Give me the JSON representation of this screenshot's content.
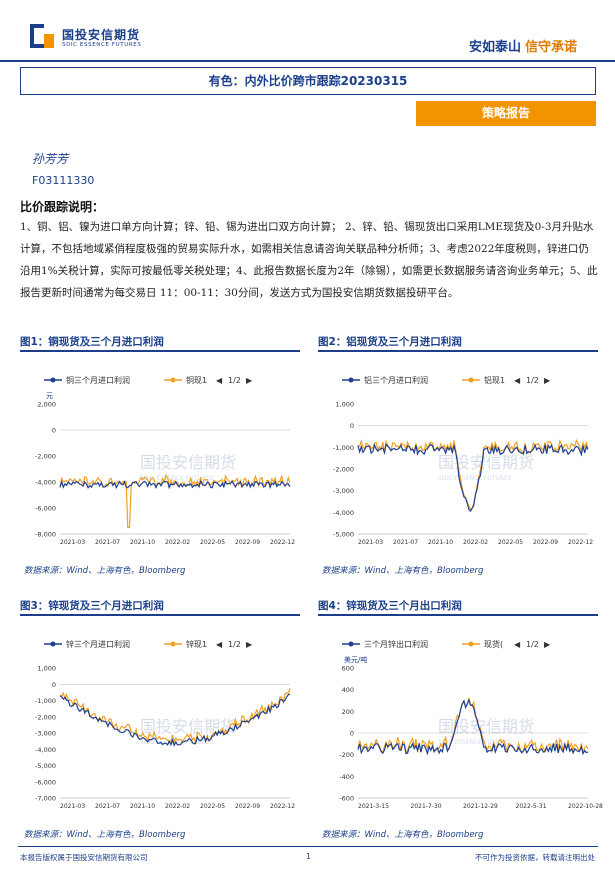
{
  "header": {
    "logo_cn": "国投安信期货",
    "logo_en": "SDIC ESSENCE FUTURES",
    "slogan_main": "安如泰山",
    "slogan_accent": "信守承诺"
  },
  "report": {
    "title": "有色：内外比价跨市跟踪20230315",
    "tag": "策略报告",
    "author": "孙芳芳",
    "license": "F03111330",
    "section_title": "比价跟踪说明：",
    "description": "1、铜、铝、镍为进口单方向计算；锌、铅、锡为进出口双方向计算； 2、锌、铅、锡现货出口采用LME现货及0-3月升贴水计算，不包括地域紧俏程度极强的贸易实际升水，如需相关信息请咨询关联品种分析师；3、考虑2022年度税则，锌进口仍沿用1%关税计算，实际可按最低零关税处理；4、此报告数据长度为2年（除锡），如需更长数据服务请咨询业务单元；5、此报告更新时间通常为每交易日 11：00-11：30分间，发送方式为国投安信期货数据投研平台。"
  },
  "colors": {
    "blue": "#1b3f8b",
    "orange": "#f29400",
    "series_blue": "#1f3f8f",
    "series_orange": "#f0a020"
  },
  "charts": [
    {
      "fig_label": "图1：铜现货及三个月进口利润",
      "legend": [
        "铜三个月进口利润",
        "铜现1"
      ],
      "pager": "1/2",
      "unit": "元",
      "source": "数据来源：Wind、上海有色，Bloomberg",
      "yticks": [
        "2,000",
        "0",
        "-2,000",
        "-4,000",
        "-6,000",
        "-8,000"
      ],
      "xticks": [
        "2021-03",
        "2021-07",
        "2021-10",
        "2022-02",
        "2022-05",
        "2022-09",
        "2022-12"
      ]
    },
    {
      "fig_label": "图2：铝现货及三个月进口利润",
      "legend": [
        "铝三个月进口利润",
        "铝现1"
      ],
      "pager": "1/2",
      "unit": "",
      "source": "数据来源：Wind、上海有色，Bloomberg",
      "yticks": [
        "1,000",
        "0",
        "-1,000",
        "-2,000",
        "-3,000",
        "-4,000",
        "-5,000"
      ],
      "xticks": [
        "2021-03",
        "2021-07",
        "2021-10",
        "2022-02",
        "2022-05",
        "2022-09",
        "2022-12"
      ]
    },
    {
      "fig_label": "图3：锌现货及三个月进口利润",
      "legend": [
        "锌三个月进口利润",
        "锌现1"
      ],
      "pager": "1/2",
      "unit": "",
      "source": "数据来源：Wind、上海有色，Bloomberg",
      "yticks": [
        "1,000",
        "0",
        "-1,000",
        "-2,000",
        "-3,000",
        "-4,000",
        "-5,000",
        "-6,000",
        "-7,000"
      ],
      "xticks": [
        "2021-03",
        "2021-07",
        "2021-10",
        "2022-02",
        "2022-05",
        "2022-09",
        "2022-12"
      ]
    },
    {
      "fig_label": "图4：锌现货及三个月出口利润",
      "legend": [
        "三个月锌出口利润",
        "现货("
      ],
      "pager": "1/2",
      "unit": "美元/吨",
      "source": "数据来源：Wind、上海有色，Bloomberg",
      "yticks": [
        "600",
        "400",
        "200",
        "0",
        "-200",
        "-400",
        "-600"
      ],
      "xticks": [
        "2021-3-15",
        "2021-7-30",
        "2021-12-29",
        "2022-5-31",
        "2022-10-28"
      ]
    }
  ],
  "watermark": {
    "cn": "国投安信期货",
    "en": "SDIC ESSENCE FUTURES"
  },
  "footer": {
    "left": "本报告版权属于国投安信期货有限公司",
    "page": "1",
    "right": "不可作为投资依据，转载请注明出处"
  }
}
